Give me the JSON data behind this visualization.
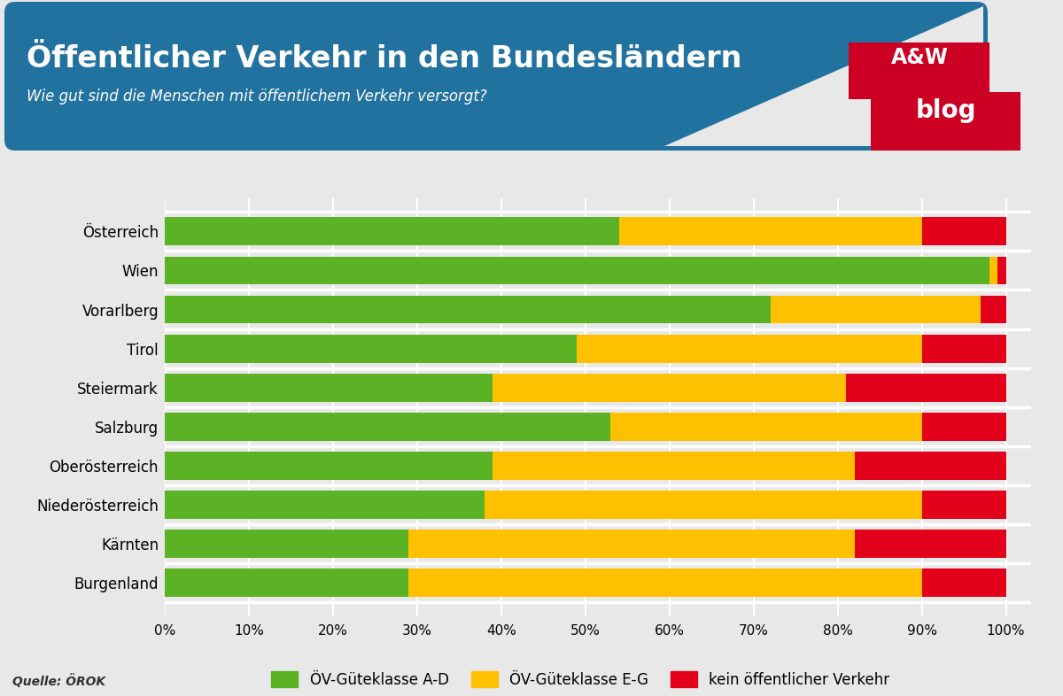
{
  "categories": [
    "Österreich",
    "Wien",
    "Vorarlberg",
    "Tirol",
    "Steiermark",
    "Salzburg",
    "Oberösterreich",
    "Niederösterreich",
    "Kärnten",
    "Burgenland"
  ],
  "green": [
    54,
    98,
    72,
    49,
    39,
    53,
    39,
    38,
    29,
    29
  ],
  "yellow": [
    36,
    1,
    25,
    41,
    42,
    37,
    43,
    52,
    53,
    61
  ],
  "red": [
    10,
    1,
    3,
    10,
    19,
    10,
    18,
    10,
    18,
    10
  ],
  "green_color": "#5ab224",
  "yellow_color": "#ffc000",
  "red_color": "#e2001a",
  "title": "Öffentlicher Verkehr in den Bundesländern",
  "subtitle": "Wie gut sind die Menschen mit öffentlichem Verkehr versorgt?",
  "source": "Quelle: ÖROK",
  "legend_labels": [
    "ÖV-Güteklasse A-D",
    "ÖV-Güteklasse E-G",
    "kein öffentlicher Verkehr"
  ],
  "header_bg": "#2272a0",
  "chart_bg": "#e8e8e8",
  "title_fontsize": 24,
  "subtitle_fontsize": 12,
  "tick_fontsize": 11,
  "label_fontsize": 12,
  "logo_color": "#cc0022",
  "logo_text1": "A&W",
  "logo_text2": "blog"
}
